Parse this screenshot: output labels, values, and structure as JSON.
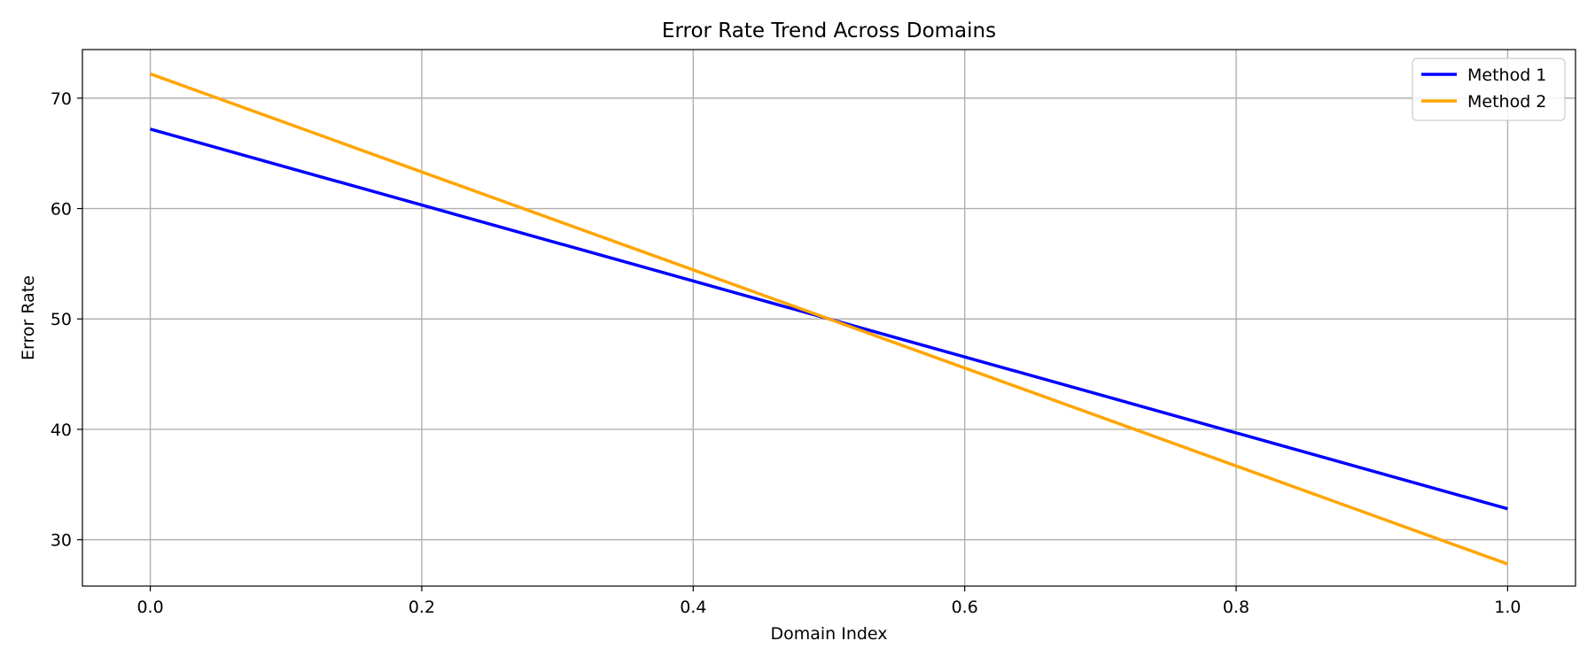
{
  "chart_data": {
    "type": "line",
    "title": "Error Rate Trend Across Domains",
    "xlabel": "Domain Index",
    "ylabel": "Error Rate",
    "xlim": [
      -0.05,
      1.05
    ],
    "ylim": [
      25.8,
      74.4
    ],
    "xticks": [
      0.0,
      0.2,
      0.4,
      0.6,
      0.8,
      1.0
    ],
    "xtick_labels": [
      "0.0",
      "0.2",
      "0.4",
      "0.6",
      "0.8",
      "1.0"
    ],
    "yticks": [
      30,
      40,
      50,
      60,
      70
    ],
    "ytick_labels": [
      "30",
      "40",
      "50",
      "60",
      "70"
    ],
    "grid": true,
    "legend_position": "top-right",
    "series": [
      {
        "name": "Method 1",
        "color": "#0000ff",
        "x": [
          0.0,
          1.0
        ],
        "y": [
          67.2,
          32.8
        ]
      },
      {
        "name": "Method 2",
        "color": "#ffa500",
        "x": [
          0.0,
          1.0
        ],
        "y": [
          72.2,
          27.8
        ]
      }
    ]
  }
}
